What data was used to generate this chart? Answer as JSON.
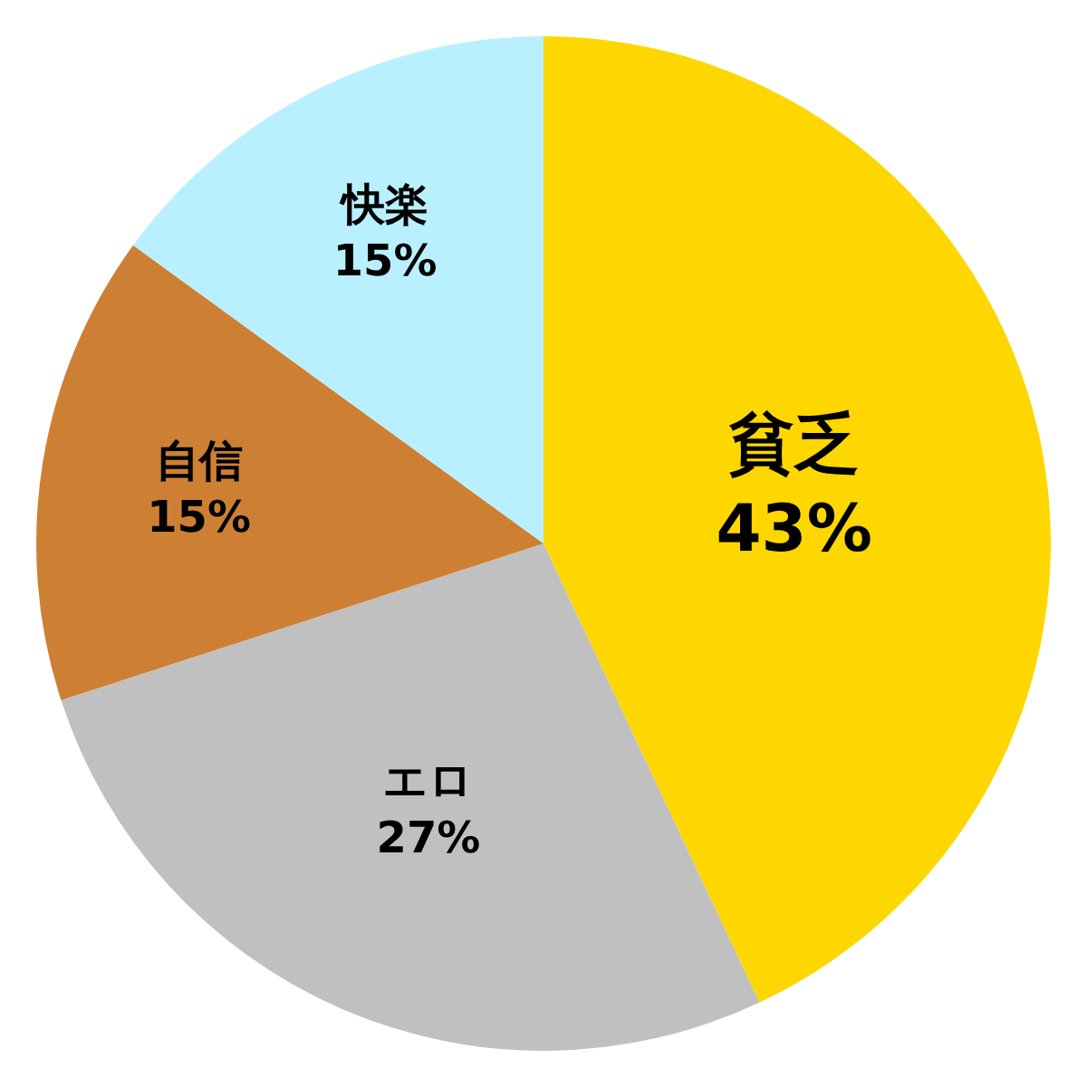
{
  "chart_data": {
    "type": "pie",
    "categories": [
      "貧乏",
      "エロ",
      "自信",
      "快楽"
    ],
    "values": [
      43,
      27,
      15,
      15
    ],
    "value_labels": [
      "43%",
      "27%",
      "15%",
      "15%"
    ],
    "colors": [
      "#ffd700",
      "#c0c0c0",
      "#cd8034",
      "#b9f0ff"
    ],
    "legend": false
  }
}
